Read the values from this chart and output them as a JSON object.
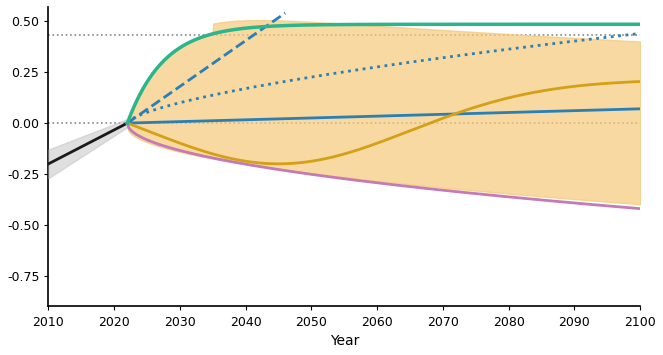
{
  "xlim": [
    2010,
    2100
  ],
  "ylim": [
    -0.9,
    0.57
  ],
  "yticks": [
    0.5,
    0.25,
    0.0,
    -0.25,
    -0.5,
    -0.75
  ],
  "xticks": [
    2010,
    2020,
    2030,
    2040,
    2050,
    2060,
    2070,
    2080,
    2090,
    2100
  ],
  "hline_zero": 0.0,
  "hline_upper": 0.43,
  "net_zero_year": 2022,
  "colors": {
    "black_line": "#1a1a1a",
    "black_band": "#c0c0c0",
    "blue_solid": "#2a7fb5",
    "blue_dashed": "#2a7fb5",
    "blue_dotted": "#2a7fb5",
    "green_solid": "#2ab58a",
    "orange_line": "#d4a017",
    "pink_line": "#c47ab5",
    "orange_band": "#f5c97a",
    "hline_color": "#888888"
  },
  "background": "#ffffff"
}
